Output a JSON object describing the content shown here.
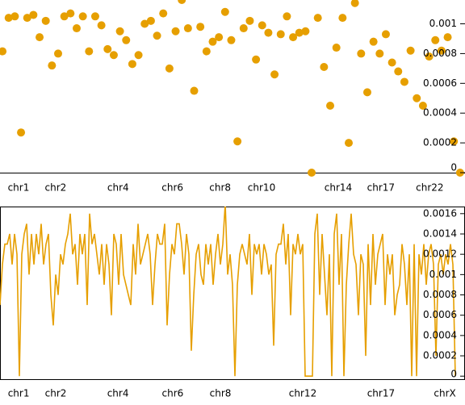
{
  "chart_data": [
    {
      "type": "scatter",
      "color": "#e69f00",
      "values": [
        0.000815,
        0.00104,
        0.00105,
        0.00027,
        0.00104,
        0.00106,
        0.00091,
        0.00102,
        0.00072,
        0.0008,
        0.00105,
        0.00107,
        0.00097,
        0.00105,
        0.000815,
        0.00105,
        0.00099,
        0.00083,
        0.00079,
        0.00095,
        0.00089,
        0.00073,
        0.00079,
        0.001,
        0.00102,
        0.00092,
        0.00107,
        0.0007,
        0.00095,
        0.00116,
        0.00097,
        0.00055,
        0.00098,
        0.000815,
        0.00088,
        0.00091,
        0.00108,
        0.00089,
        0.00021,
        0.00097,
        0.00102,
        0.00076,
        0.00099,
        0.00094,
        0.00066,
        0.00093,
        0.00105,
        0.00091,
        0.00094,
        0.00095,
        0,
        0.00104,
        0.00071,
        0.00045,
        0.00084,
        0.00104,
        0.0002,
        0.00114,
        0.0008,
        0.00054,
        0.00088,
        0.0008,
        0.00093,
        0.00074,
        0.00068,
        0.00061,
        0.00082,
        0.0005,
        0.00045,
        0.00078,
        0.00089,
        0.00082,
        0.00091,
        0.00021,
        0
      ],
      "xlim": [
        -0.4,
        74.8
      ],
      "xticks": [
        {
          "value": 2.6,
          "label": "chr1"
        },
        {
          "value": 8.6,
          "label": "chr2"
        },
        {
          "value": 18.7,
          "label": "chr4"
        },
        {
          "value": 27.5,
          "label": "chr6"
        },
        {
          "value": 35.2,
          "label": "chr8"
        },
        {
          "value": 41.9,
          "label": "chr10"
        },
        {
          "value": 54.3,
          "label": "chr14"
        },
        {
          "value": 61.2,
          "label": "chr17"
        },
        {
          "value": 69.1,
          "label": "chr22"
        }
      ],
      "ylim": [
        0,
        0.00116
      ],
      "yticks": [
        0,
        0.0002,
        0.0004,
        0.0006,
        0.0008,
        0.001
      ]
    },
    {
      "type": "line",
      "color": "#e69f00",
      "values": [
        0.0007,
        0.0011,
        0.0013,
        0.0013,
        0.0014,
        0.0011,
        0.0014,
        0.0012,
        0,
        0.0012,
        0.0014,
        0.0015,
        0.001,
        0.0014,
        0.0011,
        0.0014,
        0.0012,
        0.0015,
        0.0011,
        0.0013,
        0.0014,
        0.0008,
        0.0005,
        0.001,
        0.0008,
        0.0012,
        0.0011,
        0.0013,
        0.0014,
        0.0016,
        0.0012,
        0.0013,
        0.0009,
        0.0014,
        0.0012,
        0.0014,
        0.0007,
        0.0016,
        0.0013,
        0.0014,
        0.0012,
        0.001,
        0.0013,
        0.0009,
        0.0013,
        0.0011,
        0.0006,
        0.0014,
        0.0013,
        0.0009,
        0.0014,
        0.001,
        0.0009,
        0.0008,
        0.0007,
        0.0013,
        0.001,
        0.0015,
        0.0011,
        0.0012,
        0.0013,
        0.0014,
        0.0012,
        0.0007,
        0.0011,
        0.0014,
        0.0013,
        0.0013,
        0.0015,
        0.0005,
        0.001,
        0.0013,
        0.0012,
        0.0015,
        0.0015,
        0.0013,
        0.001,
        0.0014,
        0.0012,
        0.00025,
        0.0008,
        0.0012,
        0.0013,
        0.001,
        0.0009,
        0.0013,
        0.0011,
        0.0013,
        0.0009,
        0.0012,
        0.0014,
        0.0011,
        0.0013,
        0.0017,
        0.001,
        0.0012,
        0.0009,
        0,
        0.0009,
        0.0012,
        0.0013,
        0.0012,
        0.0011,
        0.0014,
        0.0008,
        0.0013,
        0.0012,
        0.0013,
        0.001,
        0.0013,
        0.0012,
        0.001,
        0.0011,
        0.0003,
        0.0012,
        0.0013,
        0.0013,
        0.0015,
        0.0011,
        0.0014,
        0.0006,
        0.0013,
        0.0012,
        0.0014,
        0.0012,
        0.0013,
        0,
        0,
        0,
        0,
        0.0014,
        0.0016,
        0.0008,
        0.0014,
        0.001,
        0.0006,
        0.0012,
        0,
        0.0014,
        0.0016,
        0.0009,
        0.0014,
        0,
        0.0009,
        0.0013,
        0.0016,
        0.0012,
        0.0011,
        0.0006,
        0.0012,
        0.0011,
        0.0002,
        0.0013,
        0.0007,
        0.0014,
        0.0009,
        0.0012,
        0.0013,
        0.0014,
        0.0007,
        0.0012,
        0.001,
        0.0012,
        0.0006,
        0.0008,
        0.0009,
        0.0013,
        0.0011,
        0.0007,
        0.0012,
        0,
        0.0013,
        0,
        0.0012,
        0.001,
        0.0013,
        0.0009,
        0.0012,
        0.0013,
        0.0011,
        0.0002,
        0.0011,
        0.0012,
        0.001,
        0.0012,
        0.0011,
        0.0013,
        0.0011,
        0
      ],
      "xlim": [
        0,
        192
      ],
      "xticks": [
        {
          "value": 7.7,
          "label": "chr1"
        },
        {
          "value": 23,
          "label": "chr2"
        },
        {
          "value": 48.7,
          "label": "chr4"
        },
        {
          "value": 71.3,
          "label": "chr6"
        },
        {
          "value": 91,
          "label": "chr8"
        },
        {
          "value": 125,
          "label": "chr12"
        },
        {
          "value": 157.3,
          "label": "chr17"
        },
        {
          "value": 183.7,
          "label": "chrX"
        }
      ],
      "ylim": [
        -3e-05,
        0.00167
      ],
      "yticks": [
        0,
        0.0002,
        0.0004,
        0.0006,
        0.0008,
        0.001,
        0.0012,
        0.0014,
        0.0016
      ]
    }
  ]
}
